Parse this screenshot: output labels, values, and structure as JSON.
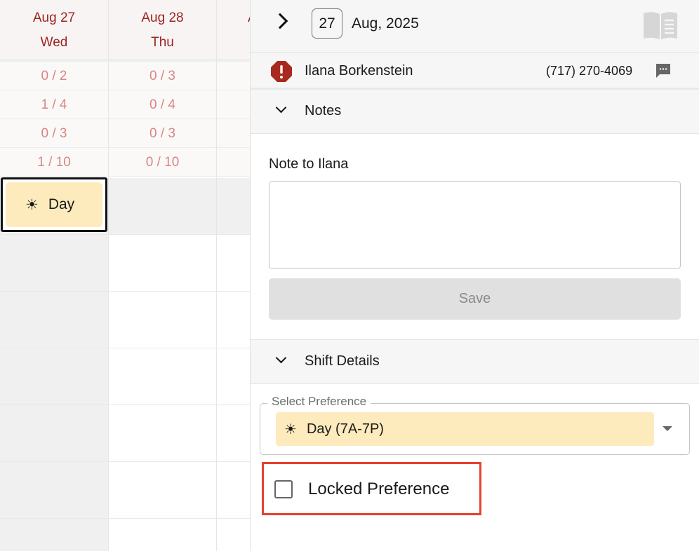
{
  "grid": {
    "columns": [
      {
        "date": "Aug 27",
        "weekday": "Wed",
        "stats": [
          "0 / 2",
          "1 / 4",
          "0 / 3",
          "1 / 10"
        ]
      },
      {
        "date": "Aug 28",
        "weekday": "Thu",
        "stats": [
          "0 / 3",
          "0 / 4",
          "0 / 3",
          "0 / 10"
        ]
      },
      {
        "date": "A",
        "weekday": "",
        "stats": [
          "",
          "",
          "",
          ""
        ]
      }
    ],
    "shift": {
      "label": "Day",
      "icon": "sun-icon"
    }
  },
  "panel": {
    "day": "27",
    "month_year": "Aug, 2025",
    "person": {
      "name": "Ilana Borkenstein",
      "phone": "(717) 270-4069"
    },
    "notes": {
      "title": "Notes",
      "label": "Note to Ilana",
      "value": "",
      "save_label": "Save"
    },
    "shift_details": {
      "title": "Shift Details",
      "select_label": "Select Preference",
      "selected": "Day (7A-7P)",
      "locked_label": "Locked Preference",
      "locked": false
    },
    "colors": {
      "accent": "#9b2423",
      "shift_bg": "#fdebbd",
      "highlight": "#e5412d"
    }
  }
}
